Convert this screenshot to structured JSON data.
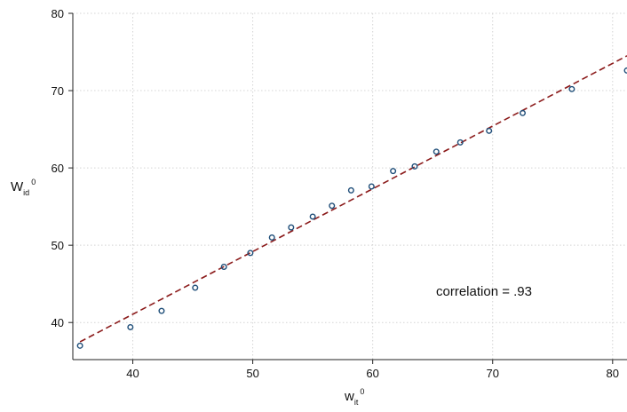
{
  "chart_data": {
    "type": "scatter",
    "xlabel": {
      "main": "w",
      "sub": "it",
      "sup": "0"
    },
    "ylabel": {
      "main": "W",
      "sub": "id",
      "sup": "0"
    },
    "xlim": [
      35,
      81.2
    ],
    "ylim": [
      35.2,
      80
    ],
    "xticks": [
      40,
      50,
      60,
      70,
      80
    ],
    "yticks": [
      40,
      50,
      60,
      70,
      80
    ],
    "grid": true,
    "points": [
      [
        35.6,
        37.0
      ],
      [
        39.8,
        39.4
      ],
      [
        42.4,
        41.5
      ],
      [
        45.2,
        44.5
      ],
      [
        47.6,
        47.2
      ],
      [
        49.8,
        49.0
      ],
      [
        51.6,
        51.0
      ],
      [
        53.2,
        52.3
      ],
      [
        55.0,
        53.7
      ],
      [
        56.6,
        55.1
      ],
      [
        58.2,
        57.1
      ],
      [
        59.9,
        57.6
      ],
      [
        61.7,
        59.6
      ],
      [
        63.5,
        60.2
      ],
      [
        65.3,
        62.1
      ],
      [
        67.3,
        63.3
      ],
      [
        69.7,
        64.8
      ],
      [
        72.5,
        67.1
      ],
      [
        76.6,
        70.2
      ],
      [
        81.2,
        72.6
      ]
    ],
    "fit_line": {
      "x": [
        35.6,
        81.2
      ],
      "y": [
        37.5,
        74.5
      ]
    },
    "annotation": "correlation = .93",
    "colors": {
      "points": "#1f4e79",
      "fit": "#8b1a1a",
      "grid": "#d4d4d4",
      "axis": "#222222"
    }
  }
}
